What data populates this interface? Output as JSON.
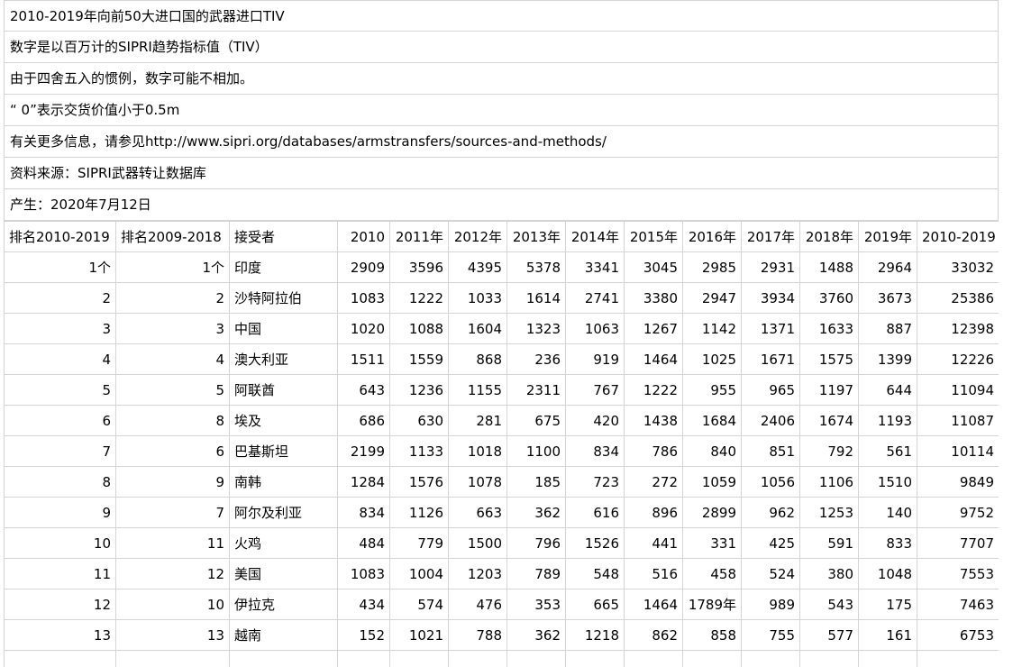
{
  "notes": [
    "2010-2019年向前50大进口国的武器进口TIV",
    "数字是以百万计的SIPRI趋势指标值（TIV）",
    "由于四舍五入的惯例，数字可能不相加。",
    "“ 0”表示交货价值小于0.5m",
    "有关更多信息，请参见http://www.sipri.org/databases/armstransfers/sources-and-methods/",
    "资料来源：SIPRI武器转让数据库",
    "产生：2020年7月12日"
  ],
  "table": {
    "headers": [
      "排名2010-2019",
      "排名2009-2018",
      "接受者",
      "2010",
      "2011年",
      "2012年",
      "2013年",
      "2014年",
      "2015年",
      "2016年",
      "2017年",
      "2018年",
      "2019年",
      "2010-2019"
    ],
    "rows": [
      [
        "1个",
        "1个",
        "印度",
        "2909",
        "3596",
        "4395",
        "5378",
        "3341",
        "3045",
        "2985",
        "2931",
        "1488",
        "2964",
        "33032"
      ],
      [
        "2",
        "2",
        "沙特阿拉伯",
        "1083",
        "1222",
        "1033",
        "1614",
        "2741",
        "3380",
        "2947",
        "3934",
        "3760",
        "3673",
        "25386"
      ],
      [
        "3",
        "3",
        "中国",
        "1020",
        "1088",
        "1604",
        "1323",
        "1063",
        "1267",
        "1142",
        "1371",
        "1633",
        "887",
        "12398"
      ],
      [
        "4",
        "4",
        "澳大利亚",
        "1511",
        "1559",
        "868",
        "236",
        "919",
        "1464",
        "1025",
        "1671",
        "1575",
        "1399",
        "12226"
      ],
      [
        "5",
        "5",
        "阿联酋",
        "643",
        "1236",
        "1155",
        "2311",
        "767",
        "1222",
        "955",
        "965",
        "1197",
        "644",
        "11094"
      ],
      [
        "6",
        "8",
        "埃及",
        "686",
        "630",
        "281",
        "675",
        "420",
        "1438",
        "1684",
        "2406",
        "1674",
        "1193",
        "11087"
      ],
      [
        "7",
        "6",
        "巴基斯坦",
        "2199",
        "1133",
        "1018",
        "1100",
        "834",
        "786",
        "840",
        "851",
        "792",
        "561",
        "10114"
      ],
      [
        "8",
        "9",
        "南韩",
        "1284",
        "1576",
        "1078",
        "185",
        "723",
        "272",
        "1059",
        "1056",
        "1106",
        "1510",
        "9849"
      ],
      [
        "9",
        "7",
        "阿尔及利亚",
        "834",
        "1126",
        "663",
        "362",
        "616",
        "896",
        "2899",
        "962",
        "1253",
        "140",
        "9752"
      ],
      [
        "10",
        "11",
        "火鸡",
        "484",
        "779",
        "1500",
        "796",
        "1526",
        "441",
        "331",
        "425",
        "591",
        "833",
        "7707"
      ],
      [
        "11",
        "12",
        "美国",
        "1083",
        "1004",
        "1203",
        "789",
        "548",
        "516",
        "458",
        "524",
        "380",
        "1048",
        "7553"
      ],
      [
        "12",
        "10",
        "伊拉克",
        "434",
        "574",
        "476",
        "353",
        "665",
        "1464",
        "1789年",
        "989",
        "543",
        "175",
        "7463"
      ],
      [
        "13",
        "13",
        "越南",
        "152",
        "1021",
        "788",
        "362",
        "1218",
        "862",
        "858",
        "755",
        "577",
        "161",
        "6753"
      ],
      [
        "",
        "",
        "",
        "",
        "",
        "",
        "",
        "",
        "",
        "",
        "",
        "",
        "",
        ""
      ]
    ]
  }
}
